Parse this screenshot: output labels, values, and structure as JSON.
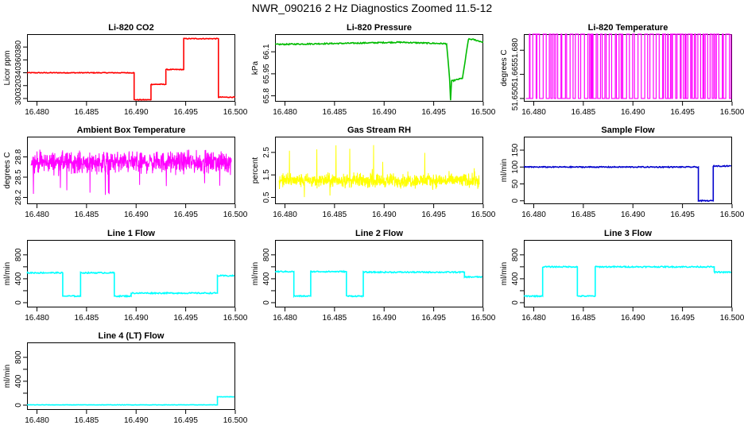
{
  "title": "NWR_090216  2 Hz Diagnostics Zoomed 11.5-12",
  "chart_data": [
    {
      "type": "line",
      "title": "Li-820 CO2",
      "xlabel": "",
      "ylabel": "Licor ppm",
      "color": "#ff0000",
      "xlim": [
        16.479,
        16.5
      ],
      "ylim": [
        295,
        400
      ],
      "x_ticks": [
        16.48,
        16.485,
        16.49,
        16.495,
        16.5
      ],
      "x_tick_labels": [
        "16.480",
        "16.485",
        "16.490",
        "16.495",
        "16.500"
      ],
      "y_ticks": [
        300,
        320,
        340,
        360,
        380
      ],
      "y_tick_labels": [
        "300",
        "320",
        "340",
        "360",
        "380"
      ],
      "series": [
        {
          "x": [
            16.479,
            16.4898,
            16.4898,
            16.4915,
            16.4915,
            16.493,
            16.493,
            16.4948,
            16.4948,
            16.4983,
            16.4983,
            16.5
          ],
          "y": [
            340,
            340,
            298,
            298,
            322,
            322,
            345,
            345,
            393,
            393,
            302,
            302
          ]
        }
      ],
      "noise": 0.6
    },
    {
      "type": "line",
      "title": "Li-820 Pressure",
      "xlabel": "",
      "ylabel": "kPa",
      "color": "#00bb00",
      "xlim": [
        16.479,
        16.5
      ],
      "ylim": [
        65.76,
        66.22
      ],
      "x_ticks": [
        16.48,
        16.485,
        16.49,
        16.495,
        16.5
      ],
      "x_tick_labels": [
        "16.480",
        "16.485",
        "16.490",
        "16.495",
        "16.500"
      ],
      "y_ticks": [
        65.8,
        65.95,
        66.1
      ],
      "y_tick_labels": [
        "65.8",
        "65.95",
        "66.1"
      ],
      "series": [
        {
          "x": [
            16.479,
            16.4865,
            16.4915,
            16.4963,
            16.4966,
            16.4967,
            16.4968,
            16.4979,
            16.498,
            16.4985,
            16.4989,
            16.5
          ],
          "y": [
            66.15,
            66.158,
            66.165,
            66.155,
            65.92,
            65.77,
            65.9,
            65.92,
            65.96,
            66.185,
            66.185,
            66.165
          ]
        }
      ],
      "noise": 0.004
    },
    {
      "type": "line",
      "title": "Li-820 Temperature",
      "xlabel": "",
      "ylabel": "degrees C",
      "color": "#ff00ff",
      "xlim": [
        16.479,
        16.5
      ],
      "ylim": [
        51.648,
        51.69
      ],
      "x_ticks": [
        16.48,
        16.485,
        16.49,
        16.495,
        16.5
      ],
      "x_tick_labels": [
        "16.480",
        "16.485",
        "16.490",
        "16.495",
        "16.500"
      ],
      "y_ticks": [
        51.65,
        51.665,
        51.68
      ],
      "y_tick_labels": [
        "51.650",
        "51.665",
        "51.680"
      ],
      "levels": [
        51.65,
        51.69
      ],
      "switches": 120
    },
    {
      "type": "line",
      "title": "Ambient Box Temperature",
      "xlabel": "",
      "ylabel": "degrees C",
      "color": "#ff00ff",
      "xlim": [
        16.479,
        16.5
      ],
      "ylim": [
        28.1,
        29.1
      ],
      "x_ticks": [
        16.48,
        16.485,
        16.49,
        16.495,
        16.5
      ],
      "x_tick_labels": [
        "16.480",
        "16.485",
        "16.490",
        "16.495",
        "16.500"
      ],
      "y_ticks": [
        28.2,
        28.5,
        28.8
      ],
      "y_tick_labels": [
        "28.2",
        "28.5",
        "28.8"
      ],
      "mean": 28.72,
      "spread": 0.15,
      "spike_range": [
        28.2,
        29.0
      ]
    },
    {
      "type": "line",
      "title": "Gas Stream RH",
      "xlabel": "",
      "ylabel": "percent",
      "color": "#ffff00",
      "xlim": [
        16.479,
        16.5
      ],
      "ylim": [
        0.2,
        3.2
      ],
      "x_ticks": [
        16.48,
        16.485,
        16.49,
        16.495,
        16.5
      ],
      "x_tick_labels": [
        "16.480",
        "16.485",
        "16.490",
        "16.495",
        "16.500"
      ],
      "y_ticks": [
        0.5,
        1.5,
        2.5
      ],
      "y_tick_labels": [
        "0.5",
        "1.5",
        "2.5"
      ],
      "mean": 1.25,
      "spread": 0.3,
      "spike_range": [
        0.4,
        3.0
      ]
    },
    {
      "type": "line",
      "title": "Sample Flow",
      "xlabel": "",
      "ylabel": "ml/min",
      "color": "#0000cc",
      "xlim": [
        16.479,
        16.5
      ],
      "ylim": [
        -10,
        190
      ],
      "x_ticks": [
        16.48,
        16.485,
        16.49,
        16.495,
        16.5
      ],
      "x_tick_labels": [
        "16.480",
        "16.485",
        "16.490",
        "16.495",
        "16.500"
      ],
      "y_ticks": [
        0,
        50,
        100,
        150
      ],
      "y_tick_labels": [
        "0",
        "50",
        "100",
        "150"
      ],
      "series": [
        {
          "x": [
            16.479,
            16.4966,
            16.4966,
            16.4981,
            16.4981,
            16.4999
          ],
          "y": [
            100,
            100,
            0,
            0,
            103,
            103
          ]
        }
      ],
      "noise": 1.5
    },
    {
      "type": "line",
      "title": "Line 1 Flow",
      "xlabel": "",
      "ylabel": "ml/min",
      "color": "#00ffff",
      "xlim": [
        16.479,
        16.5
      ],
      "ylim": [
        -80,
        1050
      ],
      "x_ticks": [
        16.48,
        16.485,
        16.49,
        16.495,
        16.5
      ],
      "x_tick_labels": [
        "16.480",
        "16.485",
        "16.490",
        "16.495",
        "16.500"
      ],
      "y_ticks": [
        0,
        200,
        400,
        600,
        800
      ],
      "y_tick_labels": [
        "0",
        "",
        "400",
        "",
        "800"
      ],
      "series": [
        {
          "x": [
            16.479,
            16.4826,
            16.4826,
            16.4844,
            16.4844,
            16.4878,
            16.4878,
            16.4895,
            16.4895,
            16.4982,
            16.4982,
            16.4999
          ],
          "y": [
            500,
            500,
            110,
            110,
            500,
            500,
            110,
            110,
            160,
            160,
            450,
            450
          ]
        }
      ],
      "noise": 10
    },
    {
      "type": "line",
      "title": "Line 2 Flow",
      "xlabel": "",
      "ylabel": "ml/min",
      "color": "#00ffff",
      "xlim": [
        16.479,
        16.5
      ],
      "ylim": [
        -80,
        1050
      ],
      "x_ticks": [
        16.48,
        16.485,
        16.49,
        16.495,
        16.5
      ],
      "x_tick_labels": [
        "16.480",
        "16.485",
        "16.490",
        "16.495",
        "16.500"
      ],
      "y_ticks": [
        0,
        200,
        400,
        600,
        800
      ],
      "y_tick_labels": [
        "0",
        "",
        "400",
        "",
        "800"
      ],
      "series": [
        {
          "x": [
            16.479,
            16.4809,
            16.4809,
            16.4826,
            16.4826,
            16.4862,
            16.4862,
            16.4879,
            16.4879,
            16.4981,
            16.4981,
            16.4999
          ],
          "y": [
            520,
            520,
            110,
            110,
            520,
            520,
            110,
            110,
            510,
            510,
            430,
            430
          ]
        }
      ],
      "noise": 10
    },
    {
      "type": "line",
      "title": "Line 3 Flow",
      "xlabel": "",
      "ylabel": "ml/min",
      "color": "#00ffff",
      "xlim": [
        16.479,
        16.5
      ],
      "ylim": [
        -80,
        1050
      ],
      "x_ticks": [
        16.48,
        16.485,
        16.49,
        16.495,
        16.5
      ],
      "x_tick_labels": [
        "16.480",
        "16.485",
        "16.490",
        "16.495",
        "16.500"
      ],
      "y_ticks": [
        0,
        200,
        400,
        600,
        800
      ],
      "y_tick_labels": [
        "0",
        "",
        "400",
        "",
        "800"
      ],
      "series": [
        {
          "x": [
            16.479,
            16.4809,
            16.4809,
            16.4844,
            16.4844,
            16.4862,
            16.4862,
            16.4982,
            16.4982,
            16.4999
          ],
          "y": [
            110,
            110,
            600,
            600,
            110,
            110,
            600,
            600,
            510,
            510
          ]
        }
      ],
      "noise": 10
    },
    {
      "type": "line",
      "title": "Line 4 (LT) Flow",
      "xlabel": "",
      "ylabel": "ml/min",
      "color": "#00ffff",
      "xlim": [
        16.479,
        16.5
      ],
      "ylim": [
        -80,
        1050
      ],
      "x_ticks": [
        16.48,
        16.485,
        16.49,
        16.495,
        16.5
      ],
      "x_tick_labels": [
        "16.480",
        "16.485",
        "16.490",
        "16.495",
        "16.500"
      ],
      "y_ticks": [
        0,
        200,
        400,
        600,
        800
      ],
      "y_tick_labels": [
        "0",
        "",
        "400",
        "",
        "800"
      ],
      "series": [
        {
          "x": [
            16.479,
            16.4982,
            16.4982,
            16.4999
          ],
          "y": [
            5,
            5,
            140,
            140
          ]
        }
      ],
      "noise": 3
    }
  ]
}
